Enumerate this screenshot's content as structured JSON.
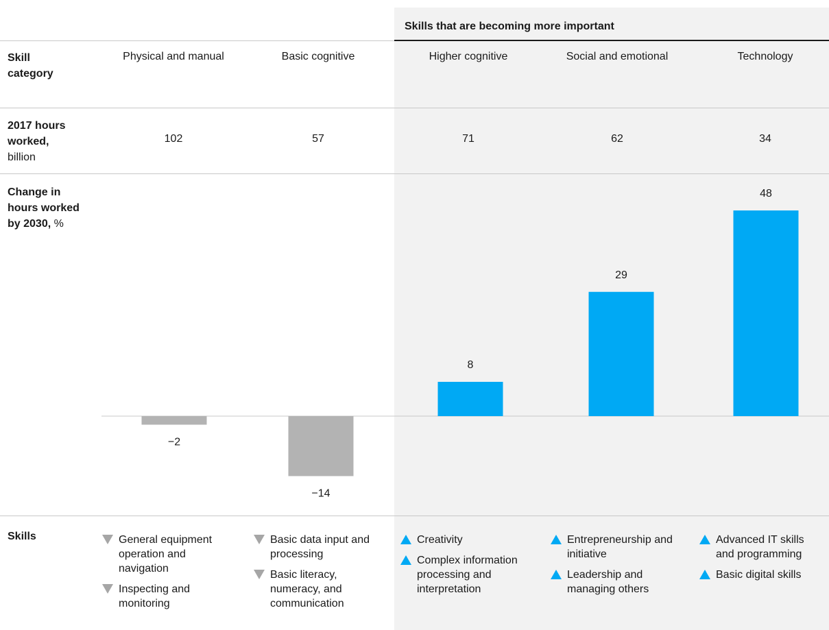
{
  "header": {
    "banner": "Skills that are becoming more important"
  },
  "row_labels": {
    "category_bold": "Skill category",
    "hours_bold": "2017 hours worked,",
    "hours_unit": "billion",
    "change_bold": "Change in hours worked by 2030,",
    "change_unit": "%",
    "skills_bold": "Skills"
  },
  "colors": {
    "negative_bar": "#b3b3b3",
    "positive_bar": "#00a9f4",
    "highlight_background": "#f2f2f2"
  },
  "chart_data": {
    "type": "bar",
    "categories": [
      "Physical and manual",
      "Basic cognitive",
      "Higher cognitive",
      "Social and emotional",
      "Technology"
    ],
    "hours_2017_billion": [
      102,
      57,
      71,
      62,
      34
    ],
    "values": [
      -2,
      -14,
      8,
      29,
      48
    ],
    "value_labels": [
      "−2",
      "−14",
      "8",
      "29",
      "48"
    ],
    "ylabel": "Change in hours worked by 2030, %"
  },
  "skills": [
    {
      "direction": "down",
      "items": [
        "General equipment operation and navigation",
        "Inspecting and monitoring"
      ]
    },
    {
      "direction": "down",
      "items": [
        "Basic data input and processing",
        "Basic literacy, numeracy, and communication"
      ]
    },
    {
      "direction": "up",
      "items": [
        "Creativity",
        "Complex information processing and interpretation"
      ]
    },
    {
      "direction": "up",
      "items": [
        "Entrepreneurship and initiative",
        "Leadership and managing others"
      ]
    },
    {
      "direction": "up",
      "items": [
        "Advanced IT skills and programming",
        "Basic digital skills"
      ]
    }
  ]
}
